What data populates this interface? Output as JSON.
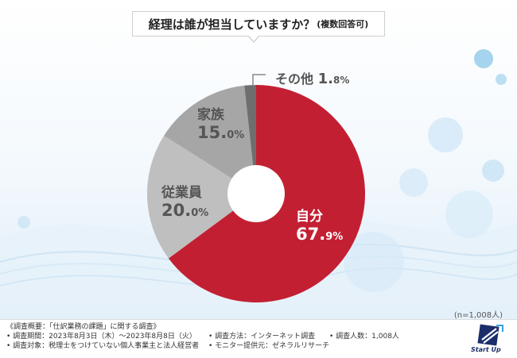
{
  "title": {
    "main": "経理は誰が担当していますか？",
    "sub": "(複数回答可)"
  },
  "chart_data": {
    "type": "pie",
    "style": "donut",
    "slices": [
      {
        "label": "自分",
        "value": 67.9,
        "color": "#c31f33"
      },
      {
        "label": "従業員",
        "value": 20.0,
        "color": "#bfbfbf"
      },
      {
        "label": "家族",
        "value": 15.0,
        "color": "#a6a6a6"
      },
      {
        "label": "その他",
        "value": 1.8,
        "color": "#6e6e6e"
      }
    ],
    "labels": {
      "self_name": "自分",
      "self_int": "67.",
      "self_dec": "9%",
      "emp_name": "従業員",
      "emp_int": "20.",
      "emp_dec": "0%",
      "fam_name": "家族",
      "fam_int": "15.",
      "fam_dec": "0%",
      "other_name": "その他",
      "other_int": "1.",
      "other_dec": "8%"
    },
    "n_note": "(n=1,008人)"
  },
  "footer": {
    "overview": "《調査概要：「仕訳業務の課題」に関する調査》",
    "period": "• 調査期間：2023年8月3日（木）〜2023年8月8日（火）",
    "method": "• 調査方法：インターネット調査",
    "count": "• 調査人数：1,008人",
    "target": "• 調査対象：税理士をつけていない個人事業主と法人経営者",
    "provider": "• モニター提供元：ゼネラルリサーチ"
  },
  "logo": {
    "text": "Start Up"
  }
}
